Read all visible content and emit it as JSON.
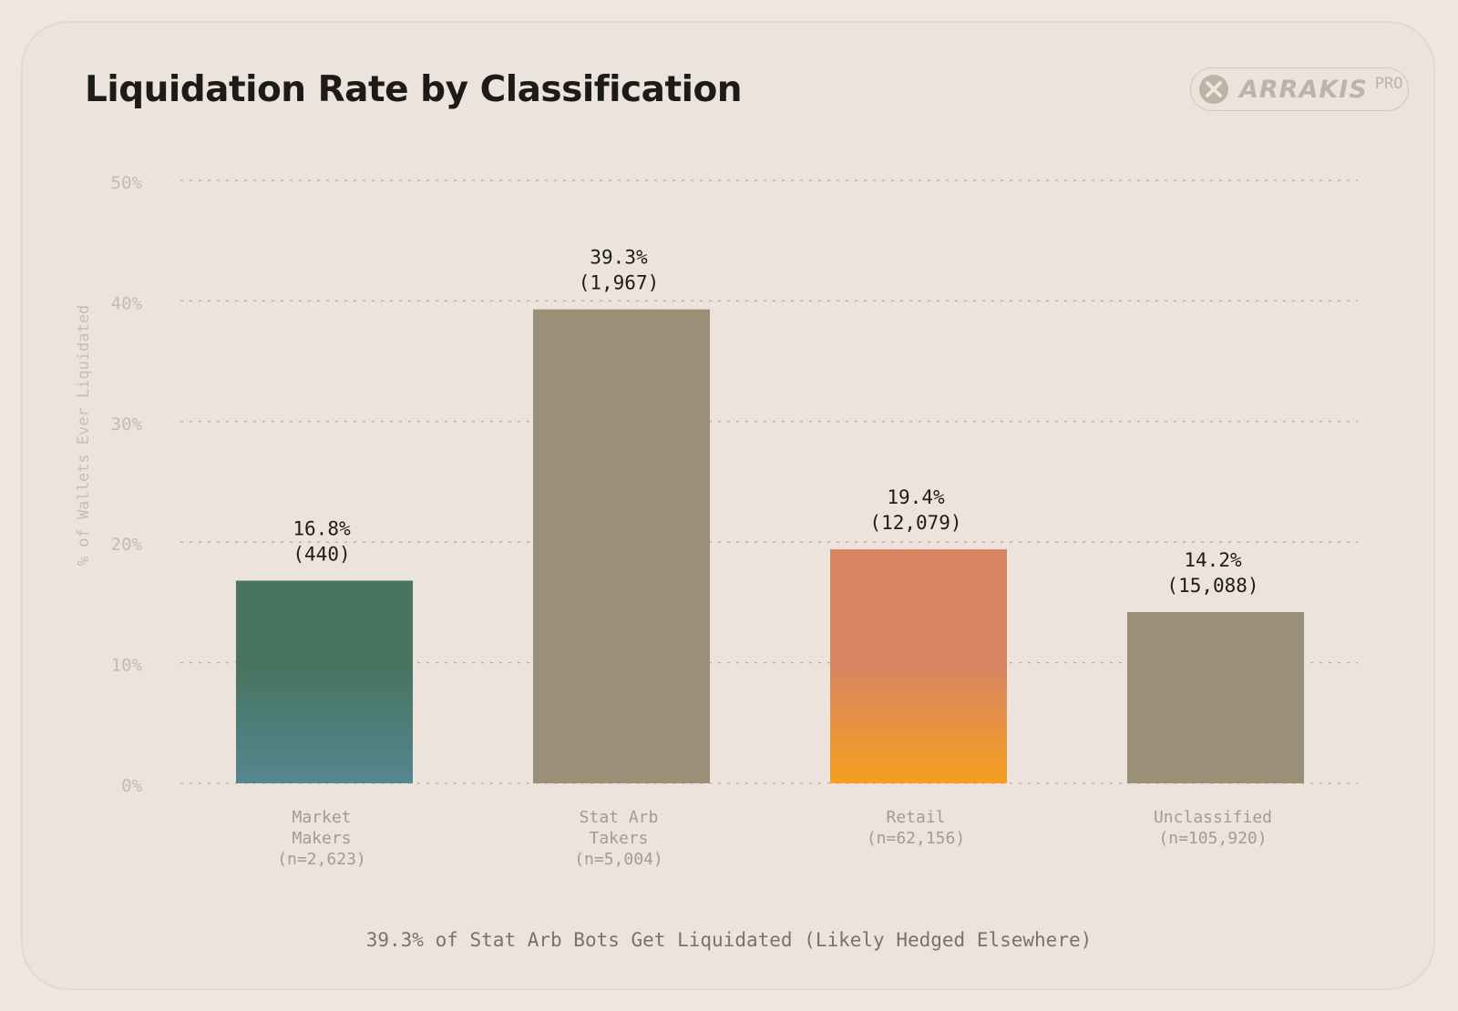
{
  "brand": {
    "name": "ARRAKIS",
    "tier": "PRO",
    "text_color": "#bdb3a6"
  },
  "chart_data": {
    "type": "bar",
    "title": "Liquidation Rate by Classification",
    "ylabel": "% of Wallets Ever Liquidated",
    "xlabel": "",
    "ylim": [
      0,
      50
    ],
    "yticks": [
      0,
      10,
      20,
      30,
      40,
      50
    ],
    "ytick_labels": [
      "0%",
      "10%",
      "20%",
      "30%",
      "40%",
      "50%"
    ],
    "grid": "dotted horizontal",
    "categories": [
      {
        "lines": [
          "Market",
          "Makers",
          "(n=2,623)"
        ],
        "value": 16.8,
        "value_label": "16.8%",
        "count_label": "(440)",
        "color_top": "#46745e",
        "color_bottom": "#568690"
      },
      {
        "lines": [
          "Stat Arb",
          "Takers",
          "(n=5,004)"
        ],
        "value": 39.3,
        "value_label": "39.3%",
        "count_label": "(1,967)",
        "color_top": "#9b8f77",
        "color_bottom": "#9b8f77"
      },
      {
        "lines": [
          "Retail",
          "(n=62,156)"
        ],
        "value": 19.4,
        "value_label": "19.4%",
        "count_label": "(12,079)",
        "color_top": "#d98562",
        "color_bottom": "#f49f20"
      },
      {
        "lines": [
          "Unclassified",
          "(n=105,920)"
        ],
        "value": 14.2,
        "value_label": "14.2%",
        "count_label": "(15,088)",
        "color_top": "#9b8f77",
        "color_bottom": "#9b8f77"
      }
    ]
  },
  "footnote": "39.3% of Stat Arb Bots Get Liquidated (Likely Hedged Elsewhere)"
}
